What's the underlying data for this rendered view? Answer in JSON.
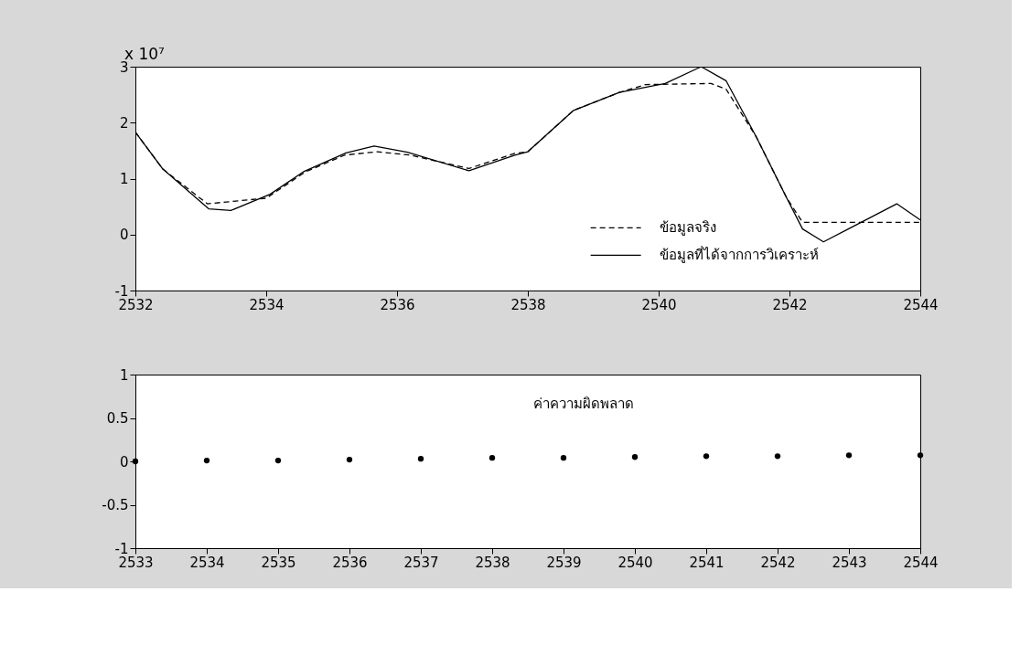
{
  "chart_data": [
    {
      "type": "line",
      "annotations": [
        "x 10⁷"
      ],
      "xlim": [
        2532,
        2544
      ],
      "xticks": [
        2532,
        2534,
        2536,
        2538,
        2540,
        2542,
        2544
      ],
      "ylim": [
        -1,
        3
      ],
      "yticks": [
        -1,
        0,
        1,
        2,
        3
      ],
      "grid": false,
      "legend": "bottom right",
      "series": [
        {
          "name": "ข้อมูลจริง",
          "color": "#000000",
          "line_style": "dashed",
          "x": [
            2532,
            2532.42,
            2533.1,
            2534,
            2534.6,
            2535.2,
            2535.7,
            2536.2,
            2537.1,
            2537.8,
            2538,
            2538.7,
            2539.4,
            2539.8,
            2540.8,
            2541.03,
            2541.49,
            2541.96,
            2542.2,
            2544
          ],
          "values": [
            1.83,
            1.17,
            0.55,
            0.65,
            1.12,
            1.42,
            1.48,
            1.42,
            1.18,
            1.45,
            1.48,
            2.22,
            2.54,
            2.68,
            2.7,
            2.6,
            1.75,
            0.65,
            0.22,
            0.22
          ]
        },
        {
          "name": "ข้อมูลที่ได้จากการวิเคราะห์",
          "color": "#000000",
          "line_style": "solid",
          "x": [
            2532,
            2532.42,
            2533.12,
            2533.46,
            2534.06,
            2534.58,
            2535.22,
            2535.65,
            2536.16,
            2537.1,
            2537.8,
            2538,
            2538.7,
            2539.4,
            2540.1,
            2540.65,
            2541.03,
            2541.49,
            2541.96,
            2542.2,
            2542.52,
            2542.9,
            2543.64,
            2544
          ],
          "values": [
            1.83,
            1.17,
            0.46,
            0.43,
            0.72,
            1.13,
            1.46,
            1.58,
            1.47,
            1.14,
            1.42,
            1.48,
            2.22,
            2.54,
            2.7,
            3.0,
            2.75,
            1.75,
            0.65,
            0.1,
            -0.13,
            0.1,
            0.55,
            0.26
          ]
        }
      ]
    },
    {
      "type": "scatter",
      "annotations": [
        "ค่าความผิดพลาด"
      ],
      "xlim": [
        2533,
        2544
      ],
      "xticks": [
        2533,
        2534,
        2535,
        2536,
        2537,
        2538,
        2539,
        2540,
        2541,
        2542,
        2543,
        2544
      ],
      "ylim": [
        -1,
        1
      ],
      "yticks": [
        -1,
        -0.5,
        0,
        0.5,
        1
      ],
      "grid": false,
      "marker": "circle",
      "series": [
        {
          "color": "#000000",
          "x": [
            2533,
            2534,
            2535,
            2536,
            2537,
            2538,
            2539,
            2540,
            2541,
            2542,
            2543,
            2544
          ],
          "values": [
            0,
            0.01,
            0.01,
            0.02,
            0.03,
            0.04,
            0.04,
            0.05,
            0.06,
            0.06,
            0.07,
            0.07
          ]
        }
      ]
    }
  ]
}
